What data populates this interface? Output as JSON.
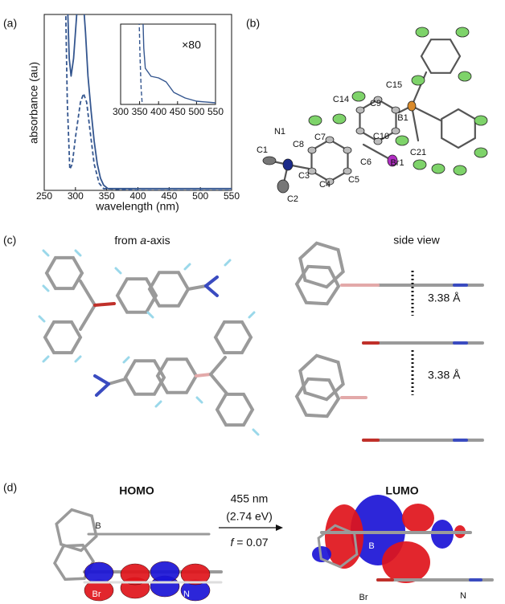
{
  "chart_data": [
    {
      "type": "line",
      "xlabel": "wavelength (nm)",
      "ylabel": "absorbance (au)",
      "xlim": [
        250,
        550
      ],
      "xticks": [
        250,
        300,
        350,
        400,
        450,
        500,
        550
      ],
      "ylim": [
        0,
        1
      ],
      "series": [
        {
          "color": "#34568f",
          "dash": false,
          "x": [
            287,
            290,
            293,
            297,
            302,
            306,
            312,
            316,
            320,
            325,
            330,
            335,
            340,
            345,
            352,
            400,
            550
          ],
          "values": [
            1.1,
            0.75,
            0.65,
            0.75,
            1.0,
            1.1,
            1.1,
            0.9,
            0.65,
            0.45,
            0.28,
            0.15,
            0.07,
            0.03,
            0.01,
            0.01,
            0.01
          ]
        },
        {
          "color": "#34568f",
          "dash": true,
          "x": [
            284,
            287,
            291,
            295,
            300,
            308,
            313,
            318,
            323,
            330,
            338,
            345,
            400,
            550
          ],
          "values": [
            1.1,
            0.5,
            0.12,
            0.15,
            0.3,
            0.5,
            0.55,
            0.5,
            0.35,
            0.15,
            0.04,
            0.01,
            0,
            0
          ]
        }
      ]
    },
    {
      "type": "line",
      "annotation": "×80",
      "xlim": [
        300,
        550
      ],
      "xticks": [
        300,
        350,
        400,
        450,
        500,
        550
      ],
      "ylim": [
        0,
        1
      ],
      "series": [
        {
          "color": "#34568f",
          "dash": false,
          "x": [
            358,
            361,
            365,
            380,
            400,
            420,
            440,
            470,
            500,
            550
          ],
          "values": [
            1.2,
            0.7,
            0.45,
            0.35,
            0.33,
            0.28,
            0.15,
            0.08,
            0.04,
            0.02
          ]
        },
        {
          "color": "#34568f",
          "dash": true,
          "x": [
            348,
            351,
            354,
            357
          ],
          "values": [
            1.2,
            0.6,
            0.2,
            0
          ]
        }
      ]
    }
  ],
  "panel_labels": [
    "(a)",
    "(b)",
    "(c)",
    "(d)"
  ],
  "panel_b": {
    "atoms": [
      "C1",
      "N1",
      "C8",
      "C7",
      "C14",
      "C9",
      "C15",
      "B1",
      "C10",
      "C6",
      "Br1",
      "C21",
      "C3",
      "C5",
      "C4",
      "C2"
    ]
  },
  "panel_c": {
    "left_title": [
      "from ",
      "a",
      "-axis"
    ],
    "right_title": "side view",
    "distances": [
      "3.38 Å",
      "3.38 Å"
    ]
  },
  "panel_d": {
    "homo": "HOMO",
    "lumo": "LUMO",
    "wavelength": "455 nm",
    "energy": "(2.74 eV)",
    "oscillator": [
      "f",
      " = 0.07"
    ],
    "homo_atoms": [
      "B",
      "Br",
      "N"
    ],
    "lumo_atoms": [
      "B",
      "Br",
      "N"
    ]
  }
}
